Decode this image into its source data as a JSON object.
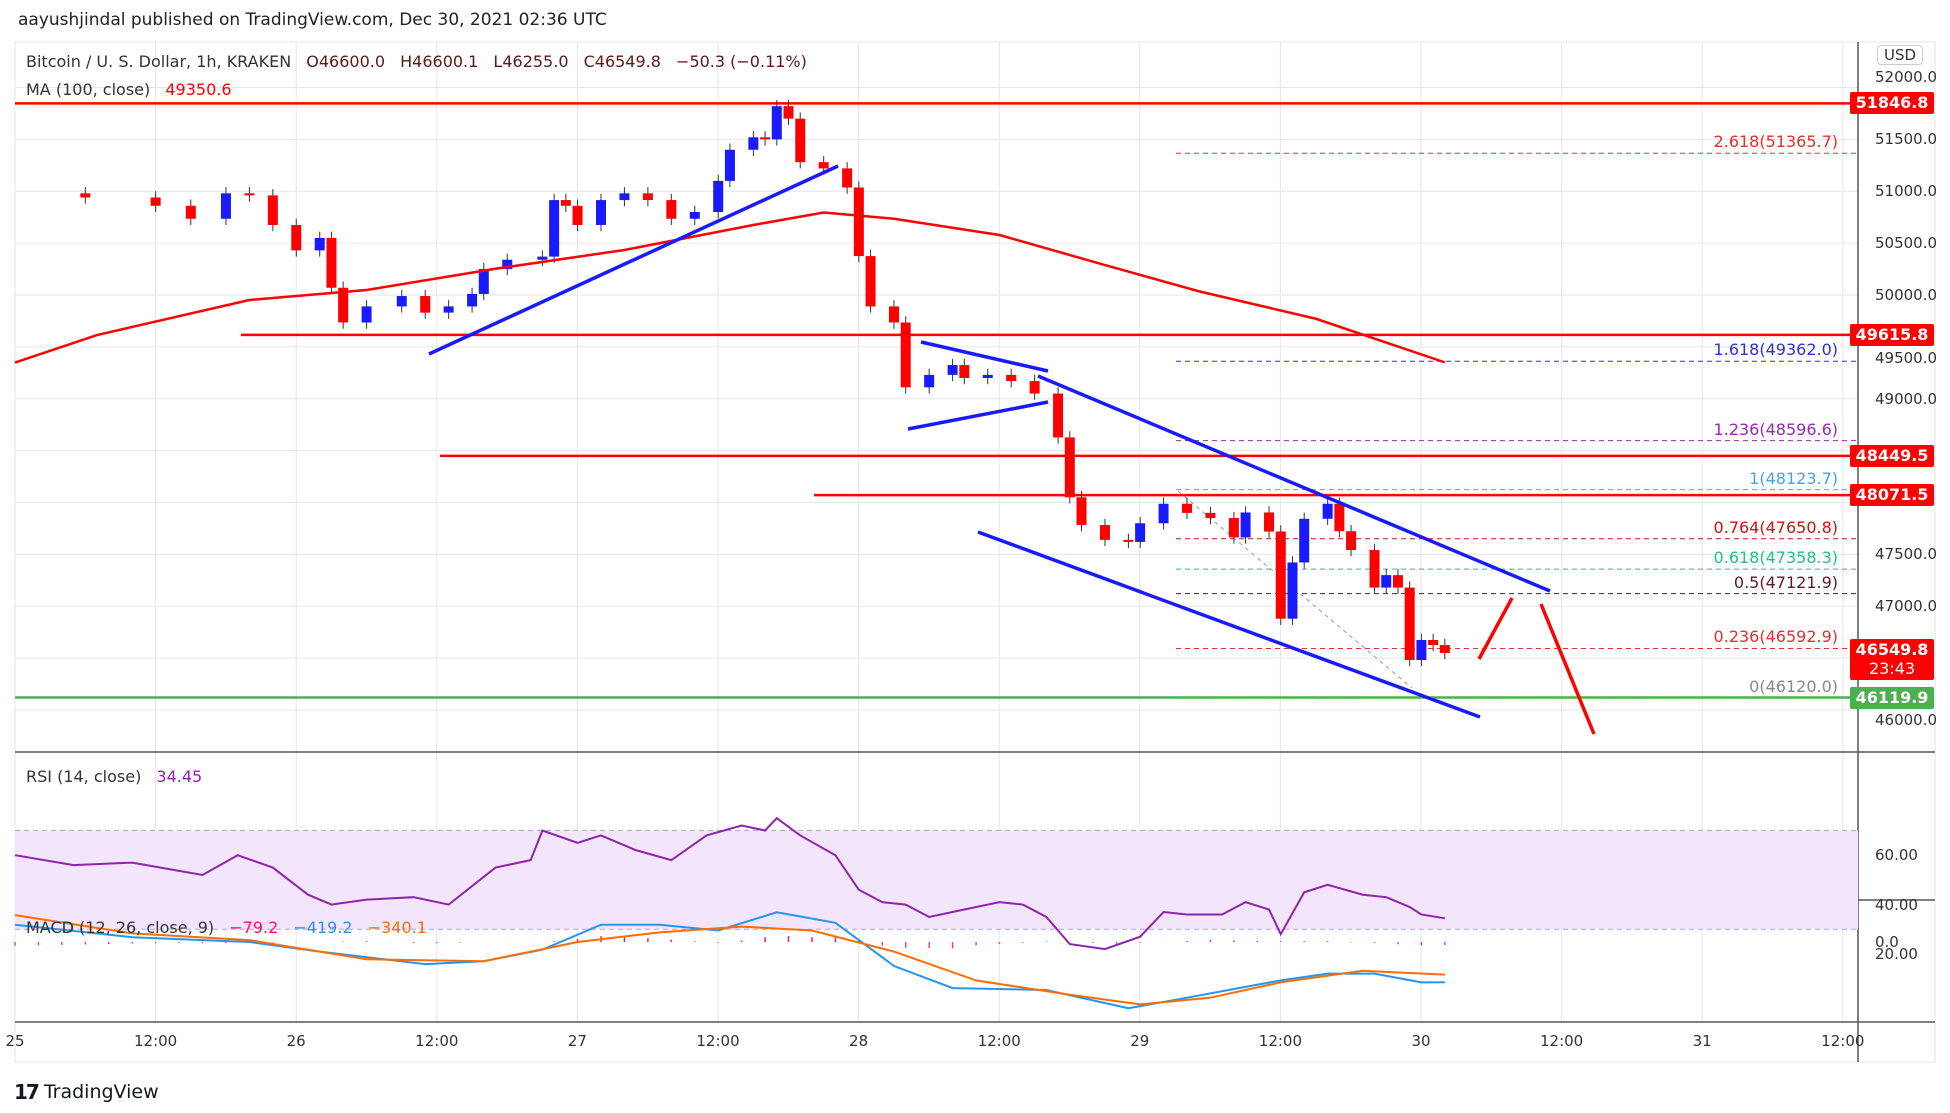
{
  "header": {
    "published": "aayushjindal published on TradingView.com, Dec 30, 2021 02:36 UTC"
  },
  "legend": {
    "symbol": "Bitcoin / U. S. Dollar, 1h, KRAKEN",
    "open": "O46600.0",
    "high": "H46600.1",
    "low": "L46255.0",
    "close": "C46549.8",
    "change": "−50.3 (−0.11%)",
    "ma_label": "MA (100, close)",
    "ma_value": "49350.6",
    "rsi_label": "RSI (14, close)",
    "rsi_value": "34.45",
    "macd_label": "MACD (12, 26, close, 9)",
    "macd_hist": "−79.2",
    "macd_line": "−419.2",
    "macd_signal": "−340.1"
  },
  "currency": "USD",
  "price_labels": [
    {
      "text": "51846.8",
      "value": 51846.8,
      "color": "#ff0000"
    },
    {
      "text": "49615.8",
      "value": 49615.8,
      "color": "#ff0000"
    },
    {
      "text": "48449.5",
      "value": 48449.5,
      "color": "#ff0000"
    },
    {
      "text": "48071.5",
      "value": 48071.5,
      "color": "#ff0000"
    },
    {
      "text": "46119.9",
      "value": 46119.9,
      "color": "#4caf50"
    }
  ],
  "last_price": {
    "text": "46549.8",
    "countdown": "23:43"
  },
  "fib_levels": [
    {
      "text": "2.618(51365.7)",
      "value": 51365.7,
      "color": "#e03030"
    },
    {
      "text": "1.618(49362.0)",
      "value": 49362.0,
      "color": "#3030c8"
    },
    {
      "text": "1.236(48596.6)",
      "value": 48596.6,
      "color": "#9c27b0"
    },
    {
      "text": "1(48123.7)",
      "value": 48123.7,
      "color": "#4aa3df"
    },
    {
      "text": "0.764(47650.8)",
      "value": 47650.8,
      "color": "#d01010"
    },
    {
      "text": "0.618(47358.3)",
      "value": 47358.3,
      "color": "#20c090"
    },
    {
      "text": "0.5(47121.9)",
      "value": 47121.9,
      "color": "#5a1a2a"
    },
    {
      "text": "0.236(46592.9)",
      "value": 46592.9,
      "color": "#e03030"
    },
    {
      "text": "0(46120.0)",
      "value": 46120.0,
      "color": "#888888"
    }
  ],
  "chart_data": {
    "type": "candlestick",
    "title": "Bitcoin / U. S. Dollar, 1h, KRAKEN",
    "price_ticks": [
      "52000.0",
      "51500.0",
      "51000.0",
      "50500.0",
      "50000.0",
      "49500.0",
      "49000.0",
      "47500.0",
      "47000.0",
      "46000.0"
    ],
    "rsi_ticks": [
      "60.00",
      "40.00",
      "20.00"
    ],
    "macd_ticks": [
      "0.0"
    ],
    "time_ticks": [
      "25",
      "12:00",
      "26",
      "12:00",
      "27",
      "12:00",
      "28",
      "12:00",
      "29",
      "12:00",
      "30",
      "12:00",
      "31",
      "12:00"
    ],
    "ylim": [
      45500,
      52300
    ],
    "closes_hours_from_dec25": [
      [
        0,
        50980
      ],
      [
        6,
        50940
      ],
      [
        12,
        50860
      ],
      [
        15,
        50735
      ],
      [
        18,
        50980
      ],
      [
        20,
        50960
      ],
      [
        22,
        50675
      ],
      [
        24,
        50430
      ],
      [
        26,
        50550
      ],
      [
        27,
        50070
      ],
      [
        28,
        49735
      ],
      [
        30,
        49890
      ],
      [
        33,
        49990
      ],
      [
        35,
        49830
      ],
      [
        37,
        49890
      ],
      [
        39,
        50010
      ],
      [
        40,
        50250
      ],
      [
        42,
        50340
      ],
      [
        45,
        50370
      ],
      [
        46,
        50915
      ],
      [
        47,
        50860
      ],
      [
        48,
        50675
      ],
      [
        50,
        50915
      ],
      [
        52,
        50980
      ],
      [
        54,
        50915
      ],
      [
        56,
        50735
      ],
      [
        58,
        50800
      ],
      [
        60,
        51100
      ],
      [
        61,
        51400
      ],
      [
        63,
        51520
      ],
      [
        64,
        51500
      ],
      [
        65,
        51820
      ],
      [
        66,
        51700
      ],
      [
        67,
        51280
      ],
      [
        69,
        51220
      ],
      [
        71,
        51036
      ],
      [
        72,
        50375
      ],
      [
        73,
        49890
      ],
      [
        75,
        49735
      ],
      [
        76,
        49110
      ],
      [
        78,
        49230
      ],
      [
        80,
        49325
      ],
      [
        81,
        49200
      ],
      [
        83,
        49230
      ],
      [
        85,
        49170
      ],
      [
        87,
        49050
      ],
      [
        89,
        48627
      ],
      [
        90,
        48050
      ],
      [
        91,
        47783
      ],
      [
        93,
        47640
      ],
      [
        95,
        47620
      ],
      [
        96,
        47800
      ],
      [
        98,
        47988
      ],
      [
        100,
        47900
      ],
      [
        102,
        47850
      ],
      [
        104,
        47663
      ],
      [
        105,
        47904
      ],
      [
        107,
        47720
      ],
      [
        108,
        46880
      ],
      [
        109,
        47422
      ],
      [
        110,
        47843
      ],
      [
        112,
        47988
      ],
      [
        113,
        47723
      ],
      [
        114,
        47542
      ],
      [
        116,
        47180
      ],
      [
        117,
        47300
      ],
      [
        118,
        47180
      ],
      [
        119,
        46482
      ],
      [
        120,
        46675
      ],
      [
        121,
        46626
      ],
      [
        122,
        46549.8
      ]
    ],
    "ma100": [
      [
        0,
        49349
      ],
      [
        7,
        49614
      ],
      [
        20,
        49952
      ],
      [
        30,
        50048
      ],
      [
        41,
        50253
      ],
      [
        52,
        50434
      ],
      [
        63,
        50675
      ],
      [
        69,
        50795
      ],
      [
        75,
        50735
      ],
      [
        84,
        50578
      ],
      [
        93,
        50289
      ],
      [
        101,
        50036
      ],
      [
        111,
        49771
      ],
      [
        122,
        49350.6
      ]
    ],
    "rsi": [
      [
        0,
        60
      ],
      [
        5,
        56
      ],
      [
        10,
        57
      ],
      [
        16,
        52
      ],
      [
        19,
        60
      ],
      [
        22,
        55
      ],
      [
        25,
        44
      ],
      [
        27,
        40
      ],
      [
        30,
        42
      ],
      [
        34,
        43
      ],
      [
        37,
        40
      ],
      [
        41,
        55
      ],
      [
        44,
        58
      ],
      [
        45,
        70
      ],
      [
        48,
        65
      ],
      [
        50,
        68
      ],
      [
        53,
        62
      ],
      [
        56,
        58
      ],
      [
        59,
        68
      ],
      [
        62,
        72
      ],
      [
        64,
        70
      ],
      [
        65,
        75
      ],
      [
        67,
        68
      ],
      [
        70,
        60
      ],
      [
        72,
        46
      ],
      [
        74,
        41
      ],
      [
        76,
        40
      ],
      [
        78,
        35
      ],
      [
        81,
        38
      ],
      [
        84,
        41
      ],
      [
        86,
        40
      ],
      [
        88,
        35
      ],
      [
        90,
        24
      ],
      [
        93,
        22
      ],
      [
        96,
        27
      ],
      [
        98,
        37
      ],
      [
        100,
        36
      ],
      [
        103,
        36
      ],
      [
        105,
        41
      ],
      [
        107,
        38
      ],
      [
        108,
        28
      ],
      [
        110,
        45
      ],
      [
        112,
        48
      ],
      [
        115,
        44
      ],
      [
        117,
        43
      ],
      [
        119,
        39
      ],
      [
        120,
        36
      ],
      [
        122,
        34.45
      ]
    ],
    "macd": [
      [
        0,
        180
      ],
      [
        10,
        50
      ],
      [
        20,
        0
      ],
      [
        26,
        -100
      ],
      [
        35,
        -230
      ],
      [
        40,
        -200
      ],
      [
        45,
        -80
      ],
      [
        50,
        180
      ],
      [
        55,
        180
      ],
      [
        60,
        120
      ],
      [
        65,
        310
      ],
      [
        70,
        200
      ],
      [
        75,
        -250
      ],
      [
        80,
        -480
      ],
      [
        88,
        -500
      ],
      [
        95,
        -690
      ],
      [
        100,
        -580
      ],
      [
        108,
        -400
      ],
      [
        112,
        -330
      ],
      [
        116,
        -330
      ],
      [
        120,
        -420
      ],
      [
        122,
        -419.2
      ]
    ],
    "signal": [
      [
        0,
        280
      ],
      [
        10,
        90
      ],
      [
        20,
        20
      ],
      [
        30,
        -180
      ],
      [
        40,
        -200
      ],
      [
        48,
        0
      ],
      [
        55,
        100
      ],
      [
        62,
        160
      ],
      [
        68,
        120
      ],
      [
        75,
        -100
      ],
      [
        82,
        -400
      ],
      [
        90,
        -550
      ],
      [
        96,
        -650
      ],
      [
        102,
        -580
      ],
      [
        108,
        -420
      ],
      [
        115,
        -300
      ],
      [
        122,
        -340.1
      ]
    ]
  },
  "branding": {
    "logo": "TradingView"
  }
}
